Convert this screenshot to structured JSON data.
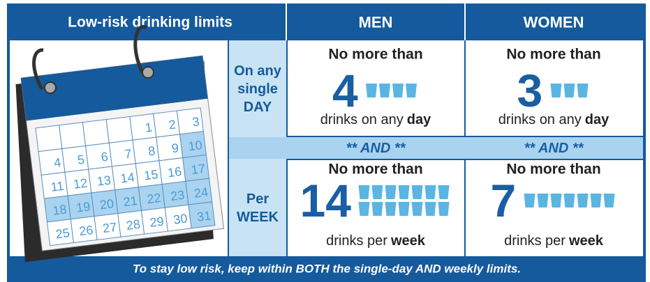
{
  "header": {
    "title": "Low-risk drinking limits",
    "columns": [
      "MEN",
      "WOMEN"
    ]
  },
  "calendar": {
    "days": [
      1,
      2,
      3,
      4,
      5,
      6,
      7,
      8,
      9,
      10,
      11,
      12,
      13,
      14,
      15,
      16,
      17,
      18,
      19,
      20,
      21,
      22,
      23,
      24,
      25,
      26,
      27,
      28,
      29,
      30,
      31
    ]
  },
  "rows": [
    {
      "label": [
        "On any",
        "single",
        "DAY"
      ],
      "cells": [
        {
          "lead": "No more than",
          "limit": 4,
          "text": "drinks on any",
          "bold": "day"
        },
        {
          "lead": "No more than",
          "limit": 3,
          "text": "drinks on any",
          "bold": "day"
        }
      ]
    },
    {
      "label": [
        "Per",
        "WEEK"
      ],
      "cells": [
        {
          "lead": "No more than",
          "limit": 14,
          "text": "drinks per",
          "bold": "week"
        },
        {
          "lead": "No more than",
          "limit": 7,
          "text": "drinks per",
          "bold": "week"
        }
      ]
    }
  ],
  "and_row": [
    "** AND **",
    "** AND **"
  ],
  "footer": "To stay low risk, keep within BOTH the single-day AND weekly limits."
}
